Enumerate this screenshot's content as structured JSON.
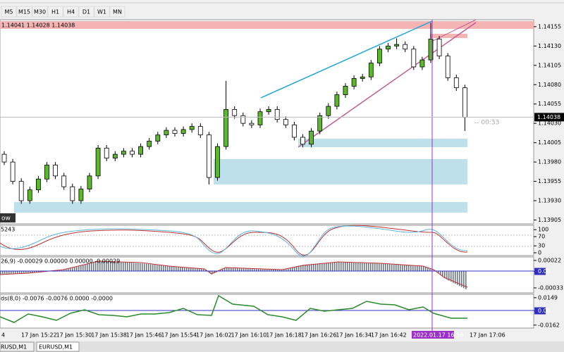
{
  "toolbar": {
    "timeframes": [
      "M5",
      "M15",
      "M30",
      "H1",
      "H4",
      "D1",
      "W1",
      "MN"
    ]
  },
  "chart_data": {
    "type": "candlestick",
    "info": "1.14041 1.14028 1.14038",
    "open": [
      1.1399,
      1.1398,
      1.13955,
      1.1393,
      1.13944,
      1.13958,
      1.13976,
      1.13962,
      1.13948,
      1.1393,
      1.13945,
      1.13962,
      1.13998,
      1.13985,
      1.1399,
      1.13994,
      1.1399,
      1.14,
      1.14007,
      1.14015,
      1.14021,
      1.14017,
      1.14022,
      1.14026,
      1.14015,
      1.1396,
      1.14,
      1.14048,
      1.1404,
      1.1403,
      1.14028,
      1.14045,
      1.14048,
      1.14035,
      1.14028,
      1.14012,
      1.14003,
      1.1402,
      1.1404,
      1.14052,
      1.14067,
      1.14078,
      1.14088,
      1.1409,
      1.14108,
      1.14126,
      1.1413,
      1.14132,
      1.14126,
      1.14103,
      1.14112,
      1.14139,
      1.14117,
      1.14089,
      1.14076
    ],
    "high": [
      1.13994,
      1.13984,
      1.13959,
      1.13948,
      1.13962,
      1.1398,
      1.1398,
      1.13966,
      1.13952,
      1.13949,
      1.13966,
      1.14002,
      1.14002,
      1.13994,
      1.13998,
      1.13998,
      1.14004,
      1.14011,
      1.14019,
      1.14025,
      1.14025,
      1.14026,
      1.1403,
      1.1403,
      1.14019,
      1.14004,
      1.14085,
      1.14052,
      1.14044,
      1.14034,
      1.14049,
      1.14052,
      1.14052,
      1.14039,
      1.14032,
      1.14016,
      1.14024,
      1.14044,
      1.14056,
      1.14071,
      1.14082,
      1.14092,
      1.14094,
      1.14112,
      1.1413,
      1.14134,
      1.1414,
      1.14136,
      1.1413,
      1.14116,
      1.1416,
      1.14143,
      1.14121,
      1.14093,
      1.1408
    ],
    "low": [
      1.13976,
      1.13951,
      1.13926,
      1.13926,
      1.1394,
      1.13954,
      1.13958,
      1.13944,
      1.13926,
      1.13926,
      1.13941,
      1.13958,
      1.13981,
      1.13981,
      1.13986,
      1.13986,
      1.13986,
      1.13996,
      1.14003,
      1.14011,
      1.14013,
      1.14013,
      1.14018,
      1.14011,
      1.13951,
      1.13956,
      1.13996,
      1.14036,
      1.14026,
      1.14024,
      1.14024,
      1.14041,
      1.14031,
      1.14024,
      1.14008,
      1.13999,
      1.13999,
      1.14016,
      1.14036,
      1.14048,
      1.14063,
      1.14074,
      1.14084,
      1.14086,
      1.14104,
      1.14122,
      1.14126,
      1.14122,
      1.14099,
      1.14099,
      1.14108,
      1.14113,
      1.14085,
      1.14072,
      1.1402
    ],
    "close": [
      1.1398,
      1.13955,
      1.1393,
      1.13944,
      1.13958,
      1.13976,
      1.13962,
      1.13948,
      1.1393,
      1.13945,
      1.13962,
      1.13998,
      1.13985,
      1.1399,
      1.13994,
      1.1399,
      1.14,
      1.14007,
      1.14015,
      1.14021,
      1.14017,
      1.14022,
      1.14026,
      1.14015,
      1.1396,
      1.14,
      1.14048,
      1.1404,
      1.1403,
      1.14028,
      1.14045,
      1.14048,
      1.14035,
      1.14028,
      1.14012,
      1.14003,
      1.1402,
      1.1404,
      1.14052,
      1.14067,
      1.14078,
      1.14088,
      1.1409,
      1.14108,
      1.14126,
      1.1413,
      1.14132,
      1.14126,
      1.14103,
      1.14112,
      1.14139,
      1.14117,
      1.14089,
      1.14076,
      1.14038
    ],
    "up_color": "#5cb82b",
    "down_color": "#ffffff",
    "ylim": [
      1.139,
      1.14164
    ],
    "yticks": [
      1.14155,
      {
        "value": 1.1413,
        "label": "1.14130"
      },
      1.14105,
      {
        "value": 1.1408,
        "label": "1.14080"
      },
      1.14055,
      {
        "value": 1.1403,
        "label": "1.14030"
      },
      1.14005,
      {
        "value": 1.1398,
        "label": "1.13980"
      },
      1.13955,
      {
        "value": 1.1393,
        "label": "1.13930"
      },
      1.13905
    ],
    "current_price": 1.14038,
    "countdown": "-- 00:33",
    "object_label": "ow"
  },
  "indicators": [
    {
      "header": "5243",
      "ylim": [
        -12,
        119
      ],
      "yticks": [
        100,
        70,
        30,
        0
      ]
    },
    {
      "header": "26,9) -0.00029 0.00000 0.00000 -0.00029",
      "ylim": [
        -0.00043,
        0.00029
      ],
      "yticks": [
        0.00022,
        {
          "value": 0,
          "label": "0.00"
        },
        -0.00033
      ]
    },
    {
      "header": "ds(8,0) -0.0076 -0.0076 0.0000 -0.0000",
      "ylim": [
        -0.0196,
        0.0188
      ],
      "yticks": [
        0.0149,
        {
          "value": 0,
          "label": "0.00"
        },
        -0.0162
      ]
    }
  ],
  "time_axis": {
    "clipped": "4",
    "labels": [
      "17 Jan 15:22",
      "17 Jan 15:30",
      "17 Jan 15:38",
      "17 Jan 15:46",
      "17 Jan 15:54",
      "17 Jan 16:02",
      "17 Jan 16:10",
      "17 Jan 16:18",
      "17 Jan 16:26",
      "17 Jan 16:34",
      "17 Jan 16:42"
    ],
    "last": "17 Jan 17:06",
    "cursor": "2022.01.17 16:58"
  },
  "tabs": [
    "RUSD,M1",
    "EURUSD,M1"
  ]
}
